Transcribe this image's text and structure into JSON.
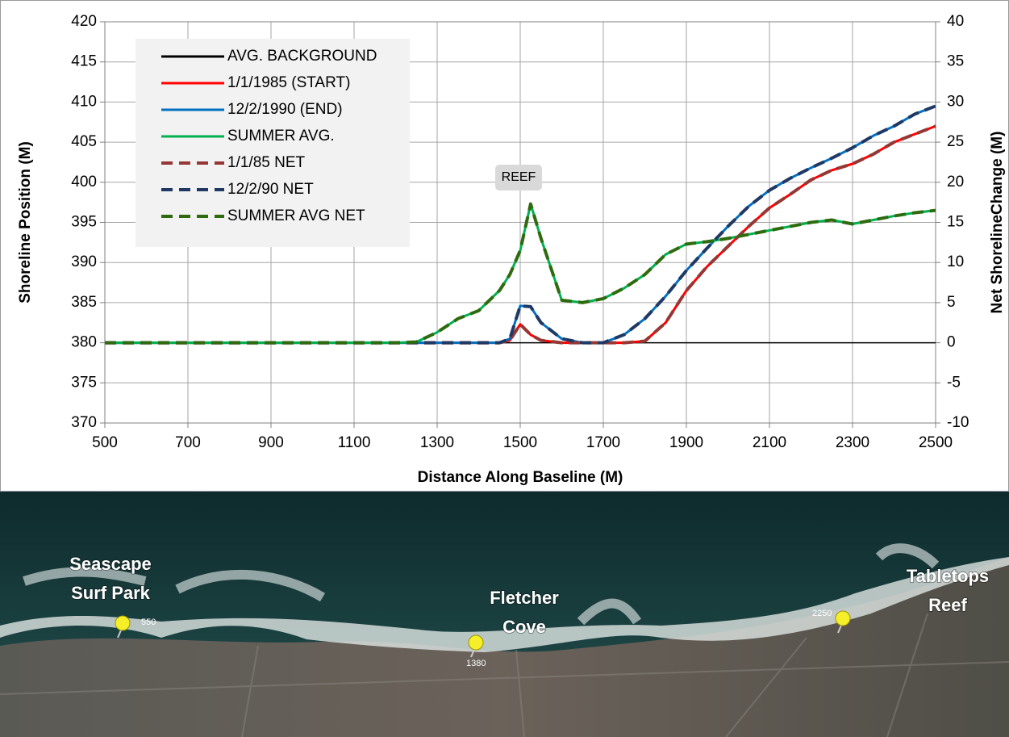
{
  "chart_data": {
    "type": "line",
    "x_label": "Distance Along Baseline (M)",
    "y_label": "Shoreline Position (M)",
    "y2_label": "Net ShorelineChange (M)",
    "annotation": "REEF",
    "xlim": [
      500,
      2500
    ],
    "xticks": [
      500,
      700,
      900,
      1100,
      1300,
      1500,
      1700,
      1900,
      2100,
      2300,
      2500
    ],
    "ylim": [
      370,
      420
    ],
    "yticks": [
      370,
      375,
      380,
      385,
      390,
      395,
      400,
      405,
      410,
      415,
      420
    ],
    "y2lim": [
      -10,
      40
    ],
    "y2ticks": [
      -10,
      -5,
      0,
      5,
      10,
      15,
      20,
      25,
      30,
      35,
      40
    ],
    "grid": true,
    "x": [
      500,
      600,
      700,
      800,
      900,
      1000,
      1100,
      1200,
      1250,
      1300,
      1350,
      1400,
      1450,
      1475,
      1500,
      1525,
      1550,
      1600,
      1650,
      1700,
      1750,
      1800,
      1850,
      1900,
      1950,
      2000,
      2050,
      2100,
      2150,
      2200,
      2250,
      2300,
      2350,
      2400,
      2450,
      2500
    ],
    "series": [
      {
        "name": "AVG. BACKGROUND",
        "color": "#000000",
        "dashed": false,
        "values": [
          380,
          380,
          380,
          380,
          380,
          380,
          380,
          380,
          380,
          380,
          380,
          380,
          380,
          380,
          380,
          380,
          380,
          380,
          380,
          380,
          380,
          380,
          380,
          380,
          380,
          380,
          380,
          380,
          380,
          380,
          380,
          380,
          380,
          380,
          380,
          380
        ]
      },
      {
        "name": "1/1/1985 (START)",
        "color": "#ff0000",
        "dashed": false,
        "values": [
          380,
          380,
          380,
          380,
          380,
          380,
          380,
          380,
          380,
          380,
          380,
          380,
          380,
          380.3,
          382.3,
          381,
          380.3,
          380,
          380,
          380,
          380,
          380.2,
          382.5,
          386.5,
          389.5,
          392,
          394.5,
          396.8,
          398.5,
          400.3,
          401.5,
          402.3,
          403.5,
          405,
          406,
          407
        ]
      },
      {
        "name": "12/2/1990 (END)",
        "color": "#0070c0",
        "dashed": false,
        "values": [
          380,
          380,
          380,
          380,
          380,
          380,
          380,
          380,
          380,
          380,
          380,
          380,
          380,
          380.5,
          384.6,
          384.5,
          382.5,
          380.5,
          380,
          380,
          381,
          383,
          385.8,
          389,
          391.8,
          394.5,
          397,
          399,
          400.5,
          401.8,
          403,
          404.3,
          405.8,
          407,
          408.5,
          409.5
        ]
      },
      {
        "name": "SUMMER AVG.",
        "color": "#00b050",
        "dashed": false,
        "values": [
          380,
          380,
          380,
          380,
          380,
          380,
          380,
          380,
          380.1,
          381.3,
          383,
          384,
          386.5,
          388.5,
          391.5,
          397.3,
          393,
          385.3,
          385,
          385.5,
          386.8,
          388.5,
          391,
          392.3,
          392.6,
          393,
          393.5,
          394,
          394.5,
          395,
          395.3,
          394.8,
          395.3,
          395.8,
          396.2,
          396.5
        ]
      },
      {
        "name": "1/1/85 NET",
        "color": "#953735",
        "dashed": true,
        "axis": "y2",
        "values": [
          0,
          0,
          0,
          0,
          0,
          0,
          0,
          0,
          0,
          0,
          0,
          0,
          0,
          0.3,
          2.3,
          1,
          0.3,
          0,
          0,
          0,
          0,
          0.2,
          2.5,
          6.5,
          9.5,
          12,
          14.5,
          16.8,
          18.5,
          20.3,
          21.5,
          22.3,
          23.5,
          25,
          26,
          27
        ]
      },
      {
        "name": "12/2/90 NET",
        "color": "#1f3864",
        "dashed": true,
        "axis": "y2",
        "values": [
          0,
          0,
          0,
          0,
          0,
          0,
          0,
          0,
          0,
          0,
          0,
          0,
          0,
          0.5,
          4.6,
          4.5,
          2.5,
          0.5,
          0,
          0,
          1,
          3,
          5.8,
          9,
          11.8,
          14.5,
          17,
          19,
          20.5,
          21.8,
          23,
          24.3,
          25.8,
          27,
          28.5,
          29.5
        ]
      },
      {
        "name": "SUMMER AVG NET",
        "color": "#2e6b0e",
        "dashed": true,
        "axis": "y2",
        "values": [
          0,
          0,
          0,
          0,
          0,
          0,
          0,
          0,
          0.1,
          1.3,
          3,
          4,
          6.5,
          8.5,
          11.5,
          17.3,
          13,
          5.3,
          5,
          5.5,
          6.8,
          8.5,
          11,
          12.3,
          12.6,
          13,
          13.5,
          14,
          14.5,
          15,
          15.3,
          14.8,
          15.3,
          15.8,
          16.2,
          16.5
        ]
      }
    ]
  },
  "photo": {
    "places": [
      [
        "Seascape",
        "Surf Park"
      ],
      [
        "Fletcher",
        "Cove"
      ],
      [
        "Tabletops",
        "Reef"
      ]
    ],
    "markers": [
      "550",
      "1380",
      "2250"
    ]
  }
}
